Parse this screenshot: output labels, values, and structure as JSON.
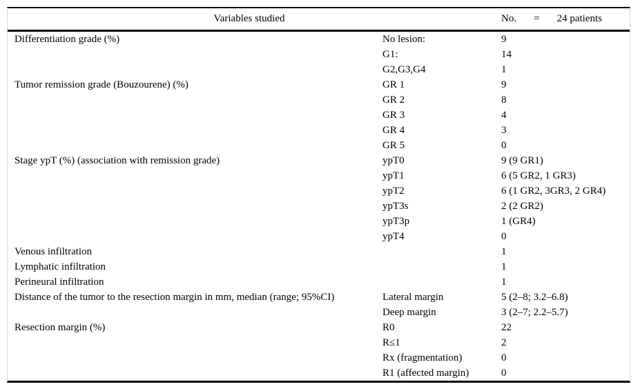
{
  "table": {
    "header": {
      "variables_label": "Variables studied",
      "no_label": "No.",
      "equals_sign": "=",
      "patients_label": "24 patients"
    },
    "rows": [
      {
        "variable": "Differentiation grade (%)",
        "category": "No lesion:",
        "value": "9"
      },
      {
        "variable": "",
        "category": "G1:",
        "value": "14"
      },
      {
        "variable": "",
        "category": "G2,G3,G4",
        "value": "1"
      },
      {
        "variable": "Tumor remission grade (Bouzourene) (%)",
        "category": "GR 1",
        "value": "9"
      },
      {
        "variable": "",
        "category": "GR 2",
        "value": "8"
      },
      {
        "variable": "",
        "category": "GR 3",
        "value": "4"
      },
      {
        "variable": "",
        "category": "GR 4",
        "value": "3"
      },
      {
        "variable": "",
        "category": "GR 5",
        "value": "0"
      },
      {
        "variable": "Stage ypT (%) (association with remission grade)",
        "category": "ypT0",
        "value": "9 (9 GR1)"
      },
      {
        "variable": "",
        "category": "ypT1",
        "value": "6 (5 GR2, 1 GR3)"
      },
      {
        "variable": "",
        "category": "ypT2",
        "value": "6 (1 GR2, 3GR3, 2 GR4)"
      },
      {
        "variable": "",
        "category": "ypT3s",
        "value": "2 (2 GR2)"
      },
      {
        "variable": "",
        "category": "ypT3p",
        "value": "1 (GR4)"
      },
      {
        "variable": "",
        "category": "ypT4",
        "value": "0"
      },
      {
        "variable": "Venous infiltration",
        "category": "",
        "value": "1"
      },
      {
        "variable": "Lymphatic infiltration",
        "category": "",
        "value": "1"
      },
      {
        "variable": "Perineural infiltration",
        "category": "",
        "value": "1"
      },
      {
        "variable": "Distance of the tumor to the resection margin in mm, median (range; 95%CI)",
        "category": "Lateral margin",
        "value": "5 (2–8; 3.2–6.8)"
      },
      {
        "variable": "",
        "category": "Deep margin",
        "value": "3 (2–7; 2.2–5.7)"
      },
      {
        "variable": "Resection margin (%)",
        "category": "R0",
        "value": "22"
      },
      {
        "variable": "",
        "category": "R≤1",
        "value": "2"
      },
      {
        "variable": "",
        "category": "Rx (fragmentation)",
        "value": "0"
      },
      {
        "variable": "",
        "category": "R1 (affected margin)",
        "value": "0"
      }
    ]
  }
}
